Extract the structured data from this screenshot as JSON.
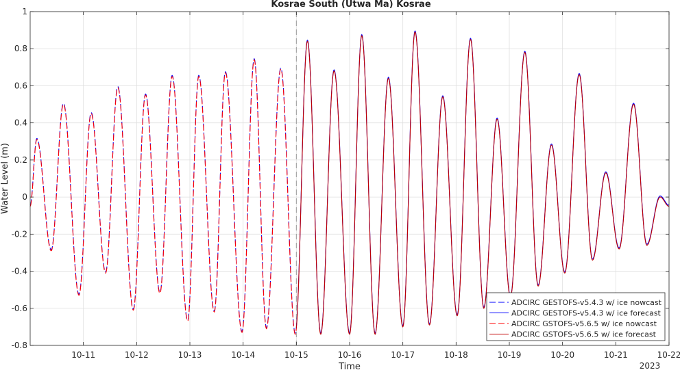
{
  "chart_data": {
    "type": "line",
    "title": "Kosrae South (Utwa Ma) Kosrae",
    "xlabel": "Time",
    "ylabel": "Water Level (m)",
    "x_year_label": "2023",
    "xlim": [
      "2023-10-10 00:00",
      "2023-10-22 00:00"
    ],
    "ylim": [
      -0.8,
      1
    ],
    "y_ticks": [
      -0.8,
      -0.6,
      -0.4,
      -0.2,
      0,
      0.2,
      0.4,
      0.6,
      0.8,
      1
    ],
    "y_tick_labels": [
      "-0.8",
      "-0.6",
      "-0.4",
      "-0.2",
      "0",
      "0.2",
      "0.4",
      "0.6",
      "0.8",
      "1"
    ],
    "x_ticks": [
      "2023-10-11",
      "2023-10-12",
      "2023-10-13",
      "2023-10-14",
      "2023-10-15",
      "2023-10-16",
      "2023-10-17",
      "2023-10-18",
      "2023-10-19",
      "2023-10-20",
      "2023-10-21",
      "2023-10-22"
    ],
    "x_tick_labels": [
      "10-11",
      "10-12",
      "10-13",
      "10-14",
      "10-15",
      "10-16",
      "10-17",
      "10-18",
      "10-19",
      "10-20",
      "10-21",
      "10-22"
    ],
    "grid": true,
    "legend_position": "bottom-right",
    "nowcast_forecast_boundary": "2023-10-15 00:00",
    "extrema": [
      {
        "t": "2023-10-10 00:00",
        "v": -0.05
      },
      {
        "t": "2023-10-10 03:00",
        "v": 0.31
      },
      {
        "t": "2023-10-10 09:30",
        "v": -0.29
      },
      {
        "t": "2023-10-10 15:00",
        "v": 0.5
      },
      {
        "t": "2023-10-10 22:00",
        "v": -0.53
      },
      {
        "t": "2023-10-11 03:30",
        "v": 0.45
      },
      {
        "t": "2023-10-11 10:00",
        "v": -0.41
      },
      {
        "t": "2023-10-11 15:30",
        "v": 0.59
      },
      {
        "t": "2023-10-11 22:30",
        "v": -0.61
      },
      {
        "t": "2023-10-12 04:00",
        "v": 0.55
      },
      {
        "t": "2023-10-12 10:30",
        "v": -0.52
      },
      {
        "t": "2023-10-12 16:00",
        "v": 0.65
      },
      {
        "t": "2023-10-12 23:00",
        "v": -0.67
      },
      {
        "t": "2023-10-13 04:00",
        "v": 0.65
      },
      {
        "t": "2023-10-13 11:00",
        "v": -0.62
      },
      {
        "t": "2023-10-13 16:00",
        "v": 0.67
      },
      {
        "t": "2023-10-13 23:30",
        "v": -0.73
      },
      {
        "t": "2023-10-14 05:00",
        "v": 0.74
      },
      {
        "t": "2023-10-14 10:30",
        "v": -0.71
      },
      {
        "t": "2023-10-14 17:00",
        "v": 0.69
      },
      {
        "t": "2023-10-14 23:30",
        "v": -0.74
      },
      {
        "t": "2023-10-15 05:00",
        "v": 0.84
      },
      {
        "t": "2023-10-15 11:00",
        "v": -0.74
      },
      {
        "t": "2023-10-15 17:00",
        "v": 0.68
      },
      {
        "t": "2023-10-16 00:00",
        "v": -0.74
      },
      {
        "t": "2023-10-16 05:30",
        "v": 0.87
      },
      {
        "t": "2023-10-16 11:30",
        "v": -0.74
      },
      {
        "t": "2023-10-16 17:30",
        "v": 0.64
      },
      {
        "t": "2023-10-17 00:00",
        "v": -0.7
      },
      {
        "t": "2023-10-17 05:30",
        "v": 0.89
      },
      {
        "t": "2023-10-17 12:00",
        "v": -0.69
      },
      {
        "t": "2023-10-17 18:00",
        "v": 0.54
      },
      {
        "t": "2023-10-18 00:30",
        "v": -0.64
      },
      {
        "t": "2023-10-18 06:30",
        "v": 0.85
      },
      {
        "t": "2023-10-18 12:30",
        "v": -0.6
      },
      {
        "t": "2023-10-18 18:30",
        "v": 0.42
      },
      {
        "t": "2023-10-19 00:30",
        "v": -0.54
      },
      {
        "t": "2023-10-19 07:00",
        "v": 0.78
      },
      {
        "t": "2023-10-19 13:00",
        "v": -0.48
      },
      {
        "t": "2023-10-19 19:00",
        "v": 0.28
      },
      {
        "t": "2023-10-20 01:00",
        "v": -0.41
      },
      {
        "t": "2023-10-20 07:30",
        "v": 0.66
      },
      {
        "t": "2023-10-20 13:30",
        "v": -0.34
      },
      {
        "t": "2023-10-20 19:30",
        "v": 0.13
      },
      {
        "t": "2023-10-21 01:30",
        "v": -0.28
      },
      {
        "t": "2023-10-21 08:00",
        "v": 0.5
      },
      {
        "t": "2023-10-21 14:00",
        "v": -0.26
      },
      {
        "t": "2023-10-21 20:00",
        "v": 0.0
      },
      {
        "t": "2023-10-22 00:00",
        "v": -0.05
      }
    ],
    "series": [
      {
        "name": "ADCIRC GESTOFS-v5.4.3 w/ ice nowcast",
        "color": "#0000ff",
        "dash": "dashed",
        "range": [
          "2023-10-10 00:00",
          "2023-10-15 00:00"
        ]
      },
      {
        "name": "ADCIRC GESTOFS-v5.4.3 w/ ice forecast",
        "color": "#0000ff",
        "dash": "solid",
        "range": [
          "2023-10-15 00:00",
          "2023-10-22 00:00"
        ]
      },
      {
        "name": "ADCIRC GSTOFS-v5.6.5 w/ ice nowcast",
        "color": "#ff0000",
        "dash": "dashed",
        "range": [
          "2023-10-10 00:00",
          "2023-10-15 00:00"
        ]
      },
      {
        "name": "ADCIRC GSTOFS-v5.6.5 w/ ice forecast",
        "color": "#c00000",
        "dash": "solid",
        "range": [
          "2023-10-15 00:00",
          "2023-10-22 00:00"
        ]
      }
    ]
  }
}
